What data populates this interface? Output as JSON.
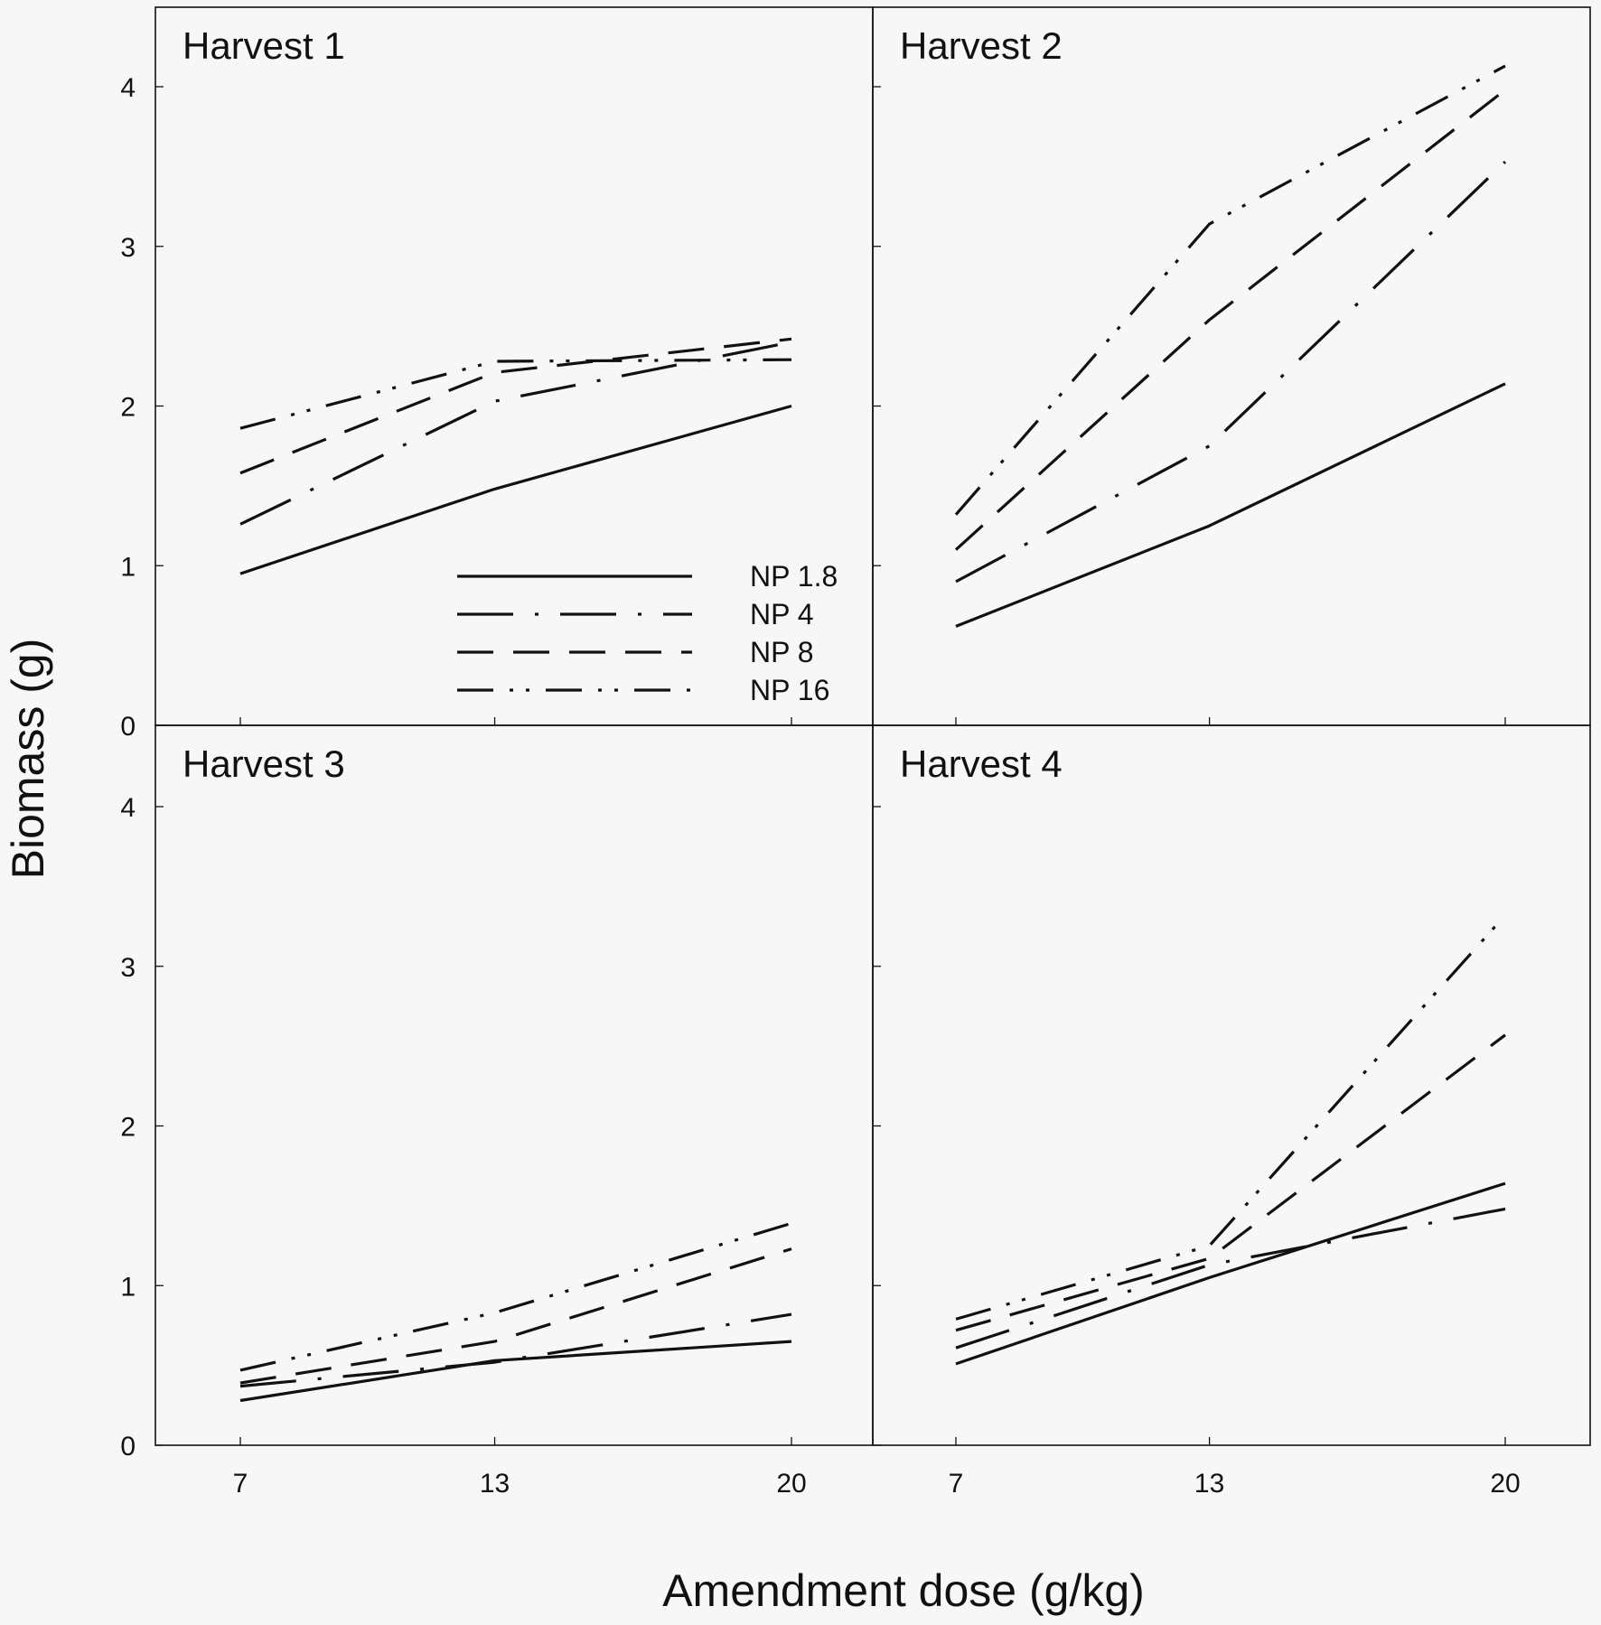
{
  "chart_data": {
    "type": "line",
    "xlabel": "Amendment dose (g/kg)",
    "ylabel": "Biomass (g)",
    "x": [
      7,
      13,
      20
    ],
    "xlim": [
      5,
      22
    ],
    "ylim": [
      0,
      4.5
    ],
    "yticks": [
      0,
      1,
      2,
      3,
      4
    ],
    "xticks": [
      7,
      13,
      20
    ],
    "legend": {
      "placement": "bottom-right of Harvest 1",
      "entries": [
        "NP 1.8",
        "NP 4",
        "NP 8",
        "NP 16"
      ]
    },
    "series_styles": {
      "NP 1.8": "solid",
      "NP 4": "long-dash-dot",
      "NP 8": "dash",
      "NP 16": "dash-dot-dot"
    },
    "panels": [
      {
        "title": "Harvest 1",
        "series": [
          {
            "name": "NP 1.8",
            "values": [
              0.95,
              1.48,
              2.0
            ]
          },
          {
            "name": "NP 4",
            "values": [
              1.26,
              2.03,
              2.4
            ]
          },
          {
            "name": "NP 8",
            "values": [
              1.58,
              2.21,
              2.42
            ]
          },
          {
            "name": "NP 16",
            "values": [
              1.86,
              2.28,
              2.29
            ]
          }
        ]
      },
      {
        "title": "Harvest 2",
        "series": [
          {
            "name": "NP 1.8",
            "values": [
              0.62,
              1.25,
              2.14
            ]
          },
          {
            "name": "NP 4",
            "values": [
              0.9,
              1.75,
              3.53
            ]
          },
          {
            "name": "NP 8",
            "values": [
              1.1,
              2.54,
              3.98
            ]
          },
          {
            "name": "NP 16",
            "values": [
              1.32,
              3.14,
              4.13
            ]
          }
        ]
      },
      {
        "title": "Harvest 3",
        "series": [
          {
            "name": "NP 1.8",
            "values": [
              0.28,
              0.53,
              0.65
            ]
          },
          {
            "name": "NP 4",
            "values": [
              0.37,
              0.52,
              0.82
            ]
          },
          {
            "name": "NP 8",
            "values": [
              0.39,
              0.65,
              1.23
            ]
          },
          {
            "name": "NP 16",
            "values": [
              0.47,
              0.83,
              1.39
            ]
          }
        ]
      },
      {
        "title": "Harvest 4",
        "series": [
          {
            "name": "NP 1.8",
            "values": [
              0.51,
              1.05,
              1.64
            ]
          },
          {
            "name": "NP 4",
            "values": [
              0.61,
              1.13,
              1.48
            ]
          },
          {
            "name": "NP 8",
            "values": [
              0.72,
              1.17,
              2.57
            ]
          },
          {
            "name": "NP 16",
            "values": [
              0.79,
              1.25,
              3.32
            ]
          }
        ]
      }
    ]
  }
}
